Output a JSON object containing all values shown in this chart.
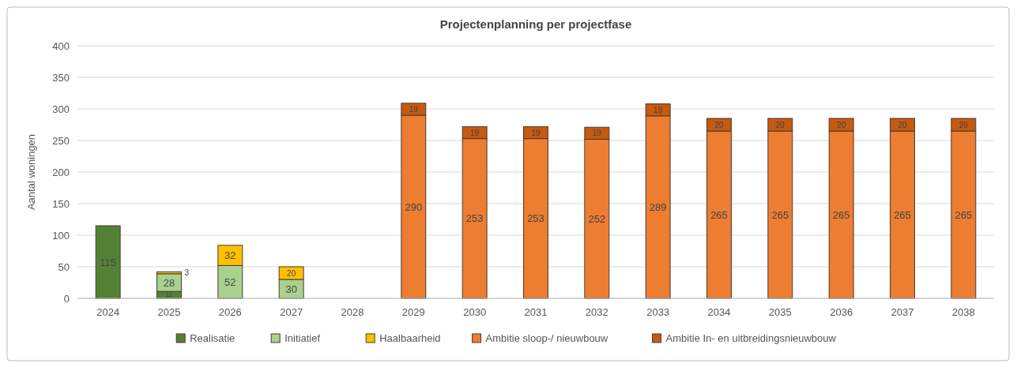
{
  "chart_data": {
    "type": "bar",
    "title": "Projectenplanning per projectfase",
    "ylabel": "Aantal woningen",
    "stacked": true,
    "data_labels": true,
    "grid": "y",
    "legend": "bottom",
    "categories": [
      "2024",
      "2025",
      "2026",
      "2027",
      "2028",
      "2029",
      "2030",
      "2031",
      "2032",
      "2033",
      "2034",
      "2035",
      "2036",
      "2037",
      "2038"
    ],
    "ylim": [
      0,
      400
    ],
    "yticks": [
      0,
      50,
      100,
      150,
      200,
      250,
      300,
      350,
      400
    ],
    "series": [
      {
        "name": "Realisatie",
        "color": "#548235",
        "values": [
          115,
          11,
          null,
          null,
          null,
          null,
          null,
          null,
          null,
          null,
          null,
          null,
          null,
          null,
          null
        ]
      },
      {
        "name": "Initiatief",
        "color": "#a9d18e",
        "values": [
          null,
          28,
          52,
          30,
          null,
          null,
          null,
          null,
          null,
          null,
          null,
          null,
          null,
          null,
          null
        ]
      },
      {
        "name": "Haalbaarheid",
        "color": "#ffc000",
        "values": [
          null,
          3,
          32,
          20,
          null,
          null,
          null,
          null,
          null,
          null,
          null,
          null,
          null,
          null,
          null
        ]
      },
      {
        "name": "Ambitie sloop-/ nieuwbouw",
        "color": "#ed7d31",
        "values": [
          null,
          null,
          null,
          null,
          null,
          290,
          253,
          253,
          252,
          289,
          265,
          265,
          265,
          265,
          265
        ]
      },
      {
        "name": "Ambitie In- en uitbreidingsnieuwbouw",
        "color": "#c55a11",
        "values": [
          null,
          null,
          null,
          null,
          null,
          19,
          19,
          19,
          19,
          19,
          20,
          20,
          20,
          20,
          20
        ]
      }
    ]
  }
}
